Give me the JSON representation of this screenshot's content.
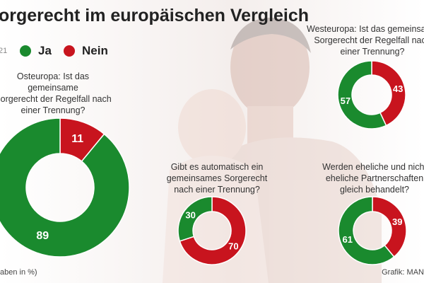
{
  "title": "orgerecht im europäischen Vergleich",
  "legend_stub": "21",
  "legend": [
    {
      "label": "Ja",
      "color": "#1a8a2e"
    },
    {
      "label": "Nein",
      "color": "#c8141e"
    }
  ],
  "footnote": "aben in %)",
  "credit": "Grafik: MAN",
  "colors": {
    "ja": "#1a8a2e",
    "nein": "#c8141e"
  },
  "chart_data": [
    {
      "type": "pie",
      "question": [
        "Osteuropa: Ist das gemeinsame",
        "Sorgerecht der Regelfall nach",
        "einer Trennung?"
      ],
      "labels": [
        "Nein",
        "Ja"
      ],
      "values": [
        11,
        89
      ]
    },
    {
      "type": "pie",
      "question": [
        "Westeuropa: Ist das gemeinsame",
        "Sorgerecht der Regelfall nach",
        "einer Trennung?"
      ],
      "labels": [
        "Nein",
        "Ja"
      ],
      "values": [
        43,
        57
      ]
    },
    {
      "type": "pie",
      "question": [
        "Gibt es automatisch ein",
        "gemeinsames Sorgerecht",
        "nach einer Trennung?"
      ],
      "labels": [
        "Nein",
        "Ja"
      ],
      "values": [
        70,
        30
      ]
    },
    {
      "type": "pie",
      "question": [
        "Werden eheliche und nicht",
        "eheliche Partnerschaften",
        "gleich behandelt?"
      ],
      "labels": [
        "Nein",
        "Ja"
      ],
      "values": [
        39,
        61
      ]
    }
  ]
}
